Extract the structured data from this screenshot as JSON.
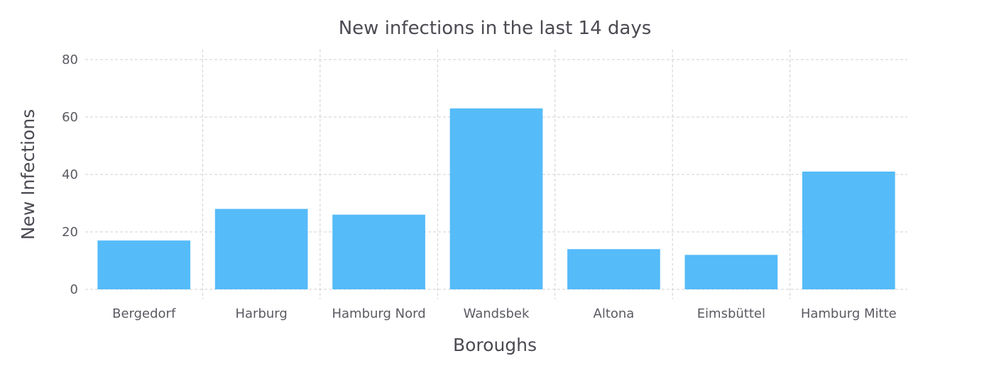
{
  "chart_data": {
    "type": "bar",
    "title": "New infections in the last 14 days",
    "xlabel": "Boroughs",
    "ylabel": "New Infections",
    "categories": [
      "Bergedorf",
      "Harburg",
      "Hamburg Nord",
      "Wandsbek",
      "Altona",
      "Eimsbüttel",
      "Hamburg Mitte"
    ],
    "values": [
      17,
      28,
      26,
      63,
      14,
      12,
      41
    ],
    "ylim": [
      0,
      80
    ],
    "yticks": [
      0,
      20,
      40,
      60,
      80
    ],
    "grid": true,
    "bar_color": "#55bbf9"
  }
}
